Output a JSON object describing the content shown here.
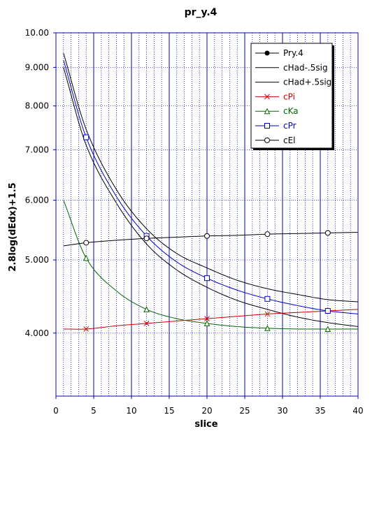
{
  "chart_data": {
    "type": "line",
    "title": "pr_y.4",
    "xlabel": "slice",
    "ylabel": "2.8log(dEdx)+1.5",
    "xlim": [
      0,
      40
    ],
    "ylim": [
      3.3,
      10.0
    ],
    "yscale": "log",
    "xticks": [
      0,
      5,
      10,
      15,
      20,
      25,
      30,
      35,
      40
    ],
    "xtick_labels": [
      "0",
      "5",
      "10",
      "15",
      "20",
      "25",
      "30",
      "35",
      "40"
    ],
    "yticks": [
      4.0,
      5.0,
      6.0,
      7.0,
      8.0,
      9.0,
      10.0
    ],
    "ytick_labels": [
      "4.000",
      "5.000",
      "6.000",
      "7.000",
      "8.000",
      "9.000",
      "10.00"
    ],
    "grid": {
      "vertical_every": 1,
      "color": "#0000cc"
    },
    "legend_position": "top-right",
    "series": [
      {
        "name": "Pry.4",
        "color": "#000000",
        "marker": "filled-circle",
        "x": [],
        "y": []
      },
      {
        "name": "cHad-.5sig",
        "color": "#000000",
        "marker": "none",
        "x": [
          1,
          4,
          8,
          12,
          16,
          20,
          24,
          28,
          32,
          36,
          40
        ],
        "y": [
          9.0,
          7.1,
          5.95,
          5.25,
          4.85,
          4.6,
          4.42,
          4.3,
          4.2,
          4.13,
          4.08
        ]
      },
      {
        "name": "cHad+.5sig",
        "color": "#000000",
        "marker": "none",
        "x": [
          1,
          4,
          8,
          12,
          16,
          20,
          24,
          28,
          32,
          36,
          40
        ],
        "y": [
          9.4,
          7.45,
          6.2,
          5.5,
          5.1,
          4.88,
          4.7,
          4.58,
          4.5,
          4.43,
          4.4
        ]
      },
      {
        "name": "cPi",
        "color": "#cc0000",
        "marker": "x",
        "x": [
          1,
          4,
          8,
          12,
          16,
          20,
          24,
          28,
          32,
          36,
          40
        ],
        "y": [
          4.05,
          4.05,
          4.09,
          4.12,
          4.15,
          4.18,
          4.21,
          4.24,
          4.26,
          4.28,
          4.3
        ]
      },
      {
        "name": "cKa",
        "color": "#006600",
        "marker": "triangle",
        "x": [
          1,
          4,
          8,
          12,
          16,
          20,
          24,
          28,
          32,
          36,
          40
        ],
        "y": [
          6.0,
          5.03,
          4.55,
          4.3,
          4.18,
          4.12,
          4.08,
          4.06,
          4.05,
          4.05,
          4.05
        ]
      },
      {
        "name": "cPr",
        "color": "#0000cc",
        "marker": "square",
        "x": [
          1,
          4,
          8,
          12,
          16,
          20,
          24,
          28,
          32,
          36,
          40
        ],
        "y": [
          9.2,
          7.27,
          6.07,
          5.38,
          4.97,
          4.73,
          4.56,
          4.44,
          4.35,
          4.28,
          4.24
        ]
      },
      {
        "name": "cEl",
        "color": "#000000",
        "marker": "circle",
        "x": [
          1,
          4,
          8,
          12,
          16,
          20,
          24,
          28,
          32,
          36,
          40
        ],
        "y": [
          5.22,
          5.27,
          5.31,
          5.34,
          5.36,
          5.38,
          5.39,
          5.41,
          5.42,
          5.43,
          5.44
        ]
      }
    ],
    "marker_x": [
      4,
      12,
      20,
      28,
      36
    ]
  }
}
